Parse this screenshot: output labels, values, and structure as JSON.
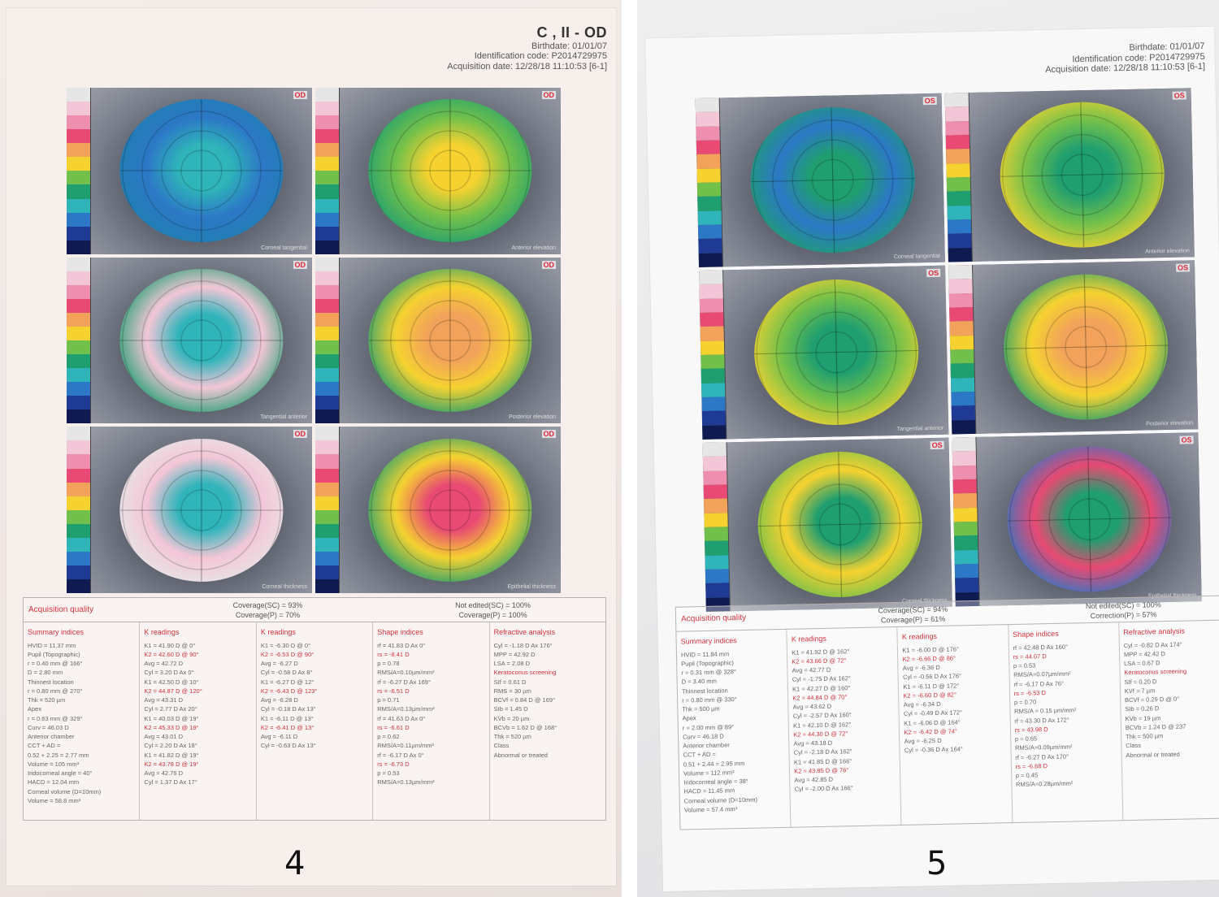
{
  "colors": {
    "accent_red": "#d1323e",
    "scale_stops": [
      "#e6e6e6",
      "#f3c6d7",
      "#ee8fb0",
      "#e84a73",
      "#f2a25a",
      "#f5d230",
      "#71c04b",
      "#1f9e70",
      "#2fb4b9",
      "#2c78c6",
      "#1f3a94",
      "#0e1a50"
    ]
  },
  "documents": [
    {
      "figure_number": "4",
      "header": {
        "name": "C        , II     - OD",
        "birthdate": "Birthdate: 01/01/07",
        "identification": "Identification code: P2014729975",
        "acquisition": "Acquisition date: 12/28/18 11:10:53 [6-1]"
      },
      "panels": [
        {
          "name": "panel-1",
          "eye_label": "OD",
          "caption": "Corneal tangential",
          "disk": "#2fb4b9,#2c78c6,#1f7fb0"
        },
        {
          "name": "panel-2",
          "eye_label": "OD",
          "caption": "Anterior elevation",
          "disk": "#f5d230,#71c04b,#1f9e70"
        },
        {
          "name": "panel-3",
          "eye_label": "OD",
          "caption": "Tangential anterior",
          "disk": "#2fb4b9,#f3c6d7,#1f9e70"
        },
        {
          "name": "panel-4",
          "eye_label": "OD",
          "caption": "Posterior elevation",
          "disk": "#f2a25a,#f5d230,#1f9e70"
        },
        {
          "name": "panel-5",
          "eye_label": "OD",
          "caption": "Corneal thickness",
          "disk": "#2fb4b9,#f3c6d7,#e6e6e6"
        },
        {
          "name": "panel-6",
          "eye_label": "OD",
          "caption": "Epithelial thickness",
          "disk": "#e84a73,#f5d230,#1f9e70"
        }
      ],
      "quality": {
        "title": "Acquisition quality",
        "coverage_sc": "Coverage(SC) = 93%",
        "coverage_p": "Coverage(P) = 70%",
        "not_edited_sc": "Not edited(SC) = 100%",
        "not_edited_p": "Coverage(P) = 100%"
      },
      "columns": [
        {
          "title": "Summary indices",
          "lines": [
            "HVID = 11.37 mm",
            "Pupil (Topographic)",
            "r = 0.40 mm @ 166°",
            "D = 2.80 mm",
            "Thinnest location",
            "r = 0.80 mm @ 270°",
            "Thk = 520 µm",
            "Apex",
            "r = 0.63 mm @ 329°",
            "Curv = 46.03 D",
            "Anterior chamber",
            "CCT + AD =",
            "0.52 + 2.25 = 2.77 mm",
            "Volume = 105 mm³",
            "Iridocorneal angle = 40°",
            "HACD = 12.04 mm",
            "Corneal volume (D=10mm)",
            "Volume = 58.8 mm³"
          ]
        },
        {
          "title": "K readings",
          "lines": [
            "K1 = 41.90 D @ 0°",
            "K2 = 42.60 D @ 90°",
            "Avg = 42.72 D",
            "Cyl = 3.20 D Ax 0°",
            "K1 = 42.50 D @ 10°",
            "K2 = 44.87 D @ 120°",
            "Avg = 43.31 D",
            "Cyl = 2.77 D Ax 20°",
            "K1 = 40.03 D @ 19°",
            "K2 = 45.33 D @ 19°",
            "Avg = 43.01 D",
            "Cyl = 2.20 D Ax 18°",
            "K1 = 41.82 D @ 19°",
            "K2 = 43.78 D @ 19°",
            "Avg = 42.76 D",
            "Cyl = 1.37 D Ax 17°"
          ]
        },
        {
          "title": "K readings",
          "lines": [
            "K1 = -6.30 D @ 0°",
            "K2 = -6.53 D @ 90°",
            "Avg = -6.27 D",
            "Cyl = -0.58 D Ax 8°",
            "K1 = -6.27 D @ 12°",
            "K2 = -6.43 D @ 123°",
            "Avg = -6.28 D",
            "Cyl = -0.18 D Ax 13°",
            "K1 = -6.11 D @ 13°",
            "K2 = -6.41 D @ 13°",
            "Avg = -6.11 D",
            "Cyl = -0.63 D Ax 13°"
          ]
        },
        {
          "title": "Shape indices",
          "lines": [
            "rf = 41.83 D Ax 0°",
            "rs = -8.41 D",
            "p = 0.78",
            "RMS/A=0.10µm/mm²",
            "rf = -6.27 D Ax 169°",
            "rs = -6.51 D",
            "p = 0.71",
            "RMS/A=0.13µm/mm²",
            "rf = 41.63 D Ax 0°",
            "rs = -6.61 D",
            "p = 0.62",
            "RMS/A=0.11µm/mm²",
            "rf = -6.17 D Ax 0°",
            "rs = -6.73 D",
            "p = 0.53",
            "RMS/A=0.13µm/mm²"
          ]
        },
        {
          "title": "Refractive analysis",
          "lines": [
            "Cyl = -1.18 D Ax 176°",
            "MPP = 42.92 D",
            "LSA = 2.08 D",
            "Keratoconus screening",
            "SIf = 0.61 D",
            "RMS = 30 µm",
            "BCVf = 0.84 D @ 169°",
            "SIb = 1.45 D",
            "KVb = 20 µm",
            "BCVb = 1.62 D @ 168°",
            "Thk = 520 µm",
            "Class",
            "Abnormal or treated"
          ]
        }
      ]
    },
    {
      "figure_number": "5",
      "header": {
        "name": "",
        "birthdate": "Birthdate: 01/01/07",
        "identification": "Identification code: P2014729975",
        "acquisition": "Acquisition date: 12/28/18 11:10:53 [6-1]"
      },
      "panels": [
        {
          "name": "panel-1",
          "eye_label": "OS",
          "caption": "Corneal tangential",
          "disk": "#1f9e70,#2c78c6,#1f9e70"
        },
        {
          "name": "panel-2",
          "eye_label": "OS",
          "caption": "Anterior elevation",
          "disk": "#1f9e70,#71c04b,#f5d230"
        },
        {
          "name": "panel-3",
          "eye_label": "OS",
          "caption": "Tangential anterior",
          "disk": "#1f9e70,#71c04b,#f5d230"
        },
        {
          "name": "panel-4",
          "eye_label": "OS",
          "caption": "Posterior elevation",
          "disk": "#f2a25a,#f5d230,#1f9e70"
        },
        {
          "name": "panel-5",
          "eye_label": "OS",
          "caption": "Corneal thickness",
          "disk": "#1f9e70,#f5d230,#71c04b"
        },
        {
          "name": "panel-6",
          "eye_label": "OS",
          "caption": "Epithelial thickness",
          "disk": "#1f9e70,#e84a73,#2c78c6"
        }
      ],
      "quality": {
        "title": "Acquisition quality",
        "coverage_sc": "Coverage(SC) = 94%",
        "coverage_p": "Coverage(P) = 61%",
        "not_edited_sc": "Not edited(SC) = 100%",
        "not_edited_p": "Correction(P) = 57%"
      },
      "columns": [
        {
          "title": "Summary indices",
          "lines": [
            "HVID = 11.84 mm",
            "Pupil (Topographic)",
            "r = 0.31 mm @ 328°",
            "D = 3.40 mm",
            "Thinnest location",
            "r = 0.80 mm @ 330°",
            "Thk = 500 µm",
            "Apex",
            "r = 2.00 mm @ 89°",
            "Curv = 46.18 D",
            "Anterior chamber",
            "CCT + AD =",
            "0.51 + 2.44 = 2.95 mm",
            "Volume = 112 mm³",
            "Iridocorneal angle = 38°",
            "HACD = 11.45 mm",
            "Corneal volume (D=10mm)",
            "Volume = 57.4 mm³"
          ]
        },
        {
          "title": "K readings",
          "lines": [
            "K1 = 41.92 D @ 162°",
            "K2 = 43.66 D @ 72°",
            "Avg = 42.77 D",
            "Cyl = -1.75 D Ax 162°",
            "K1 = 42.27 D @ 160°",
            "K2 = 44.84 D @ 70°",
            "Avg = 43.62 D",
            "Cyl = -2.57 D Ax 160°",
            "K1 = 42.10 D @ 162°",
            "K2 = 44.30 D @ 72°",
            "Avg = 43.18 D",
            "Cyl = -2.18 D Ax 162°",
            "K1 = 41.85 D @ 166°",
            "K2 = 43.85 D @ 76°",
            "Avg = 42.85 D",
            "Cyl = -2.00 D Ax 166°"
          ]
        },
        {
          "title": "K readings",
          "lines": [
            "K1 = -6.00 D @ 176°",
            "K2 = -6.66 D @ 86°",
            "Avg = -6.36 D",
            "Cyl = -0.56 D Ax 176°",
            "K1 = -6.11 D @ 172°",
            "K2 = -6.60 D @ 82°",
            "Avg = -6.34 D",
            "Cyl = -0.49 D Ax 172°",
            "K1 = -6.06 D @ 164°",
            "K2 = -6.42 D @ 74°",
            "Avg = -6.25 D",
            "Cyl = -0.36 D Ax 164°"
          ]
        },
        {
          "title": "Shape indices",
          "lines": [
            "rf = 42.48 D Ax 160°",
            "rs = 44.07 D",
            "p = 0.53",
            "RMS/A=0.07µm/mm²",
            "rf = -6.17 D Ax 76°",
            "rs = -6.53 D",
            "p = 0.70",
            "RMS/A = 0.15 µm/mm²",
            "rf = 43.30 D Ax 172°",
            "rs = 43.98 D",
            "p = 0.65",
            "RMS/A=0.09µm/mm²",
            "rf = -6.27 D Ax 170°",
            "rs = -6.68 D",
            "p = 0.45",
            "RMS/A=0.28µm/mm²"
          ]
        },
        {
          "title": "Refractive analysis",
          "lines": [
            "Cyl = -0.82 D Ax 174°",
            "MPP = 42.42 D",
            "LSA = 0.67 D",
            "Keratoconus screening",
            "SIf = 0.20 D",
            "KVf = 7 µm",
            "BCVf = 0.29 D @ 0°",
            "SIb = 0.26 D",
            "KVb = 19 µm",
            "BCVb = 1.24 D @ 237",
            "Thk = 500 µm",
            "Class",
            "Abnormal or treated"
          ]
        }
      ]
    }
  ]
}
